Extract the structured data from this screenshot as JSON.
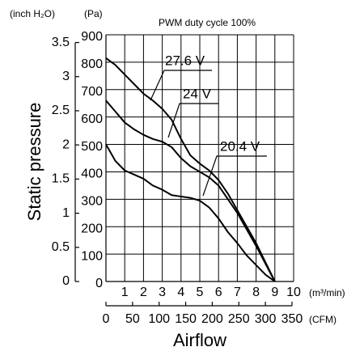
{
  "chart_data": {
    "type": "line",
    "subtitle": "PWM duty cycle 100%",
    "y_label": "Static pressure",
    "x_label": "Airflow",
    "y_unit": "(Pa)",
    "y2_unit": "(inch H₂O)",
    "x_unit": "(m³/min)",
    "x2_unit": "(CFM)",
    "x": [
      0,
      0.5,
      1,
      1.5,
      2,
      2.5,
      3,
      3.5,
      4,
      4.5,
      5,
      5.5,
      6,
      6.5,
      7,
      7.5,
      8,
      8.5,
      9
    ],
    "series": [
      {
        "name": "27.6 V",
        "color": "#000000",
        "values": [
          815,
          790,
          755,
          720,
          685,
          660,
          630,
          590,
          520,
          460,
          430,
          405,
          370,
          320,
          260,
          200,
          140,
          70,
          0
        ]
      },
      {
        "name": "24 V",
        "color": "#000000",
        "values": [
          660,
          620,
          580,
          555,
          535,
          520,
          510,
          490,
          450,
          420,
          400,
          380,
          350,
          300,
          250,
          190,
          130,
          65,
          0
        ]
      },
      {
        "name": "20.4 V",
        "color": "#000000",
        "values": [
          500,
          440,
          405,
          390,
          375,
          350,
          335,
          315,
          310,
          305,
          295,
          270,
          230,
          180,
          140,
          95,
          60,
          25,
          0
        ]
      }
    ],
    "xlim": [
      0,
      10
    ],
    "xticks": [
      1,
      2,
      3,
      4,
      5,
      6,
      7,
      8,
      9,
      10
    ],
    "x2lim": [
      0,
      353.1
    ],
    "x2ticks": [
      0,
      50,
      100,
      150,
      200,
      250,
      300,
      350
    ],
    "ylim": [
      0,
      900
    ],
    "yticks": [
      0,
      100,
      200,
      300,
      400,
      500,
      600,
      700,
      800,
      900
    ],
    "y2lim": [
      0,
      3.613
    ],
    "y2ticks": [
      0,
      0.5,
      1.0,
      1.5,
      2.0,
      2.5,
      3.0,
      3.5
    ],
    "grid": true
  }
}
